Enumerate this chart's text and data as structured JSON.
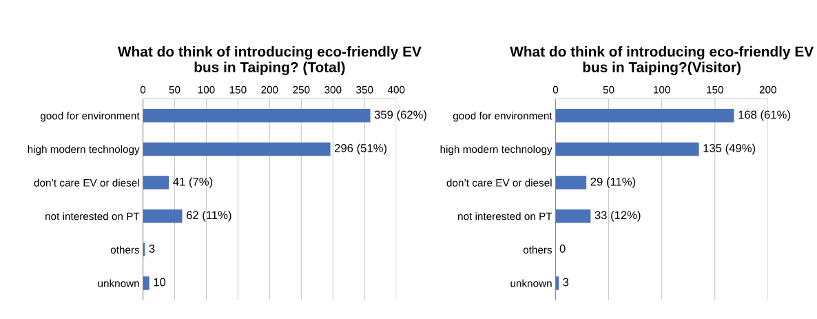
{
  "chart_data": [
    {
      "type": "bar",
      "orientation": "horizontal",
      "title": "What do think of introducing eco-friendly EV\nbus in Taiping? (Total)",
      "categories": [
        "good for environment",
        "high modern technology",
        "don’t care EV or diesel",
        "not interested on PT",
        "others",
        "unknown"
      ],
      "values": [
        359,
        296,
        41,
        62,
        3,
        10
      ],
      "value_labels": [
        "359 (62%)",
        "296 (51%)",
        "41 (7%)",
        "62 (11%)",
        "3",
        "10"
      ],
      "color": "#4a72b8",
      "xlim": [
        0,
        400
      ],
      "xticks": [
        0,
        50,
        100,
        150,
        200,
        250,
        300,
        350,
        400
      ],
      "grid": "x"
    },
    {
      "type": "bar",
      "orientation": "horizontal",
      "title": "What do think of introducing eco-friendly EV\nbus in Taiping?(Visitor)",
      "categories": [
        "good for environment",
        "high modern technology",
        "don’t care EV or diesel",
        "not interested on PT",
        "others",
        "unknown"
      ],
      "values": [
        168,
        135,
        29,
        33,
        0,
        3
      ],
      "value_labels": [
        "168 (61%)",
        "135 (49%)",
        "29 (11%)",
        "33 (12%)",
        "0",
        "3"
      ],
      "color": "#4a72b8",
      "xlim": [
        0,
        200
      ],
      "xticks": [
        0,
        50,
        100,
        150,
        200
      ],
      "grid": "x"
    }
  ]
}
